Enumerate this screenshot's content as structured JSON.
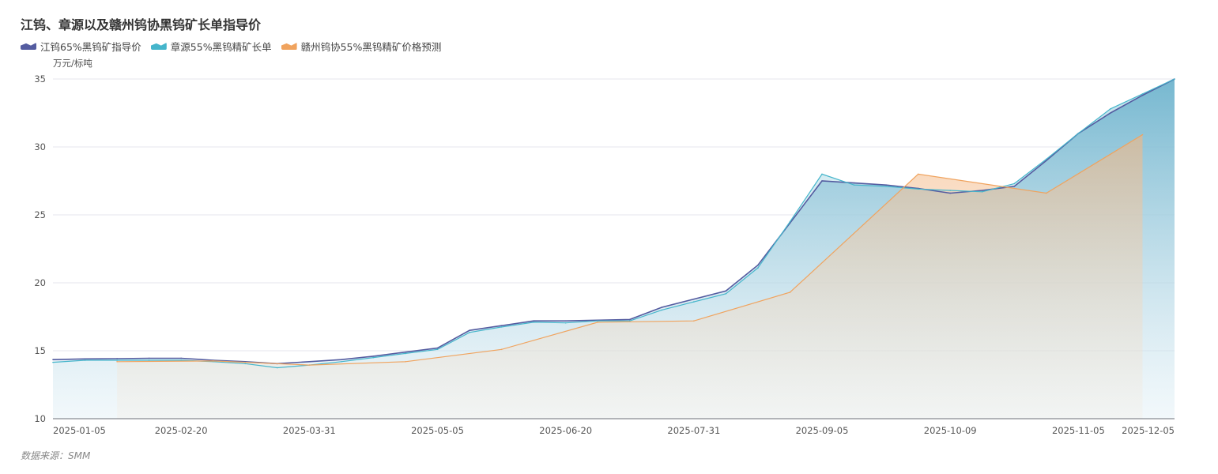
{
  "chart_data": {
    "type": "area",
    "title": "江钨、章源以及赣州钨协黑钨矿长单指导价",
    "ylabel": "万元/标吨",
    "ylim": [
      10,
      35
    ],
    "yticks": [
      10,
      15,
      20,
      25,
      30,
      35
    ],
    "grid": true,
    "legend_position": "top-left",
    "n_points": 36,
    "x_ticks": [
      {
        "i": 0,
        "label": "2025-01-05"
      },
      {
        "i": 4,
        "label": "2025-02-20"
      },
      {
        "i": 8,
        "label": "2025-03-31"
      },
      {
        "i": 12,
        "label": "2025-05-05"
      },
      {
        "i": 16,
        "label": "2025-06-20"
      },
      {
        "i": 20,
        "label": "2025-07-31"
      },
      {
        "i": 24,
        "label": "2025-09-05"
      },
      {
        "i": 28,
        "label": "2025-10-09"
      },
      {
        "i": 32,
        "label": "2025-11-05"
      },
      {
        "i": 35,
        "label": "2025-12-05"
      }
    ],
    "series": [
      {
        "name": "江钨65%黑钨矿指导价",
        "color": "#545ca0",
        "values": [
          14.35,
          14.4,
          14.42,
          14.45,
          14.45,
          14.3,
          14.2,
          14.05,
          14.2,
          14.35,
          14.6,
          14.9,
          15.2,
          16.5,
          16.85,
          17.2,
          17.2,
          17.25,
          17.3,
          18.2,
          18.8,
          19.4,
          21.3,
          24.4,
          27.5,
          27.35,
          27.2,
          26.95,
          26.6,
          26.8,
          27.1,
          29.0,
          31.0,
          32.5,
          33.8,
          35.0
        ]
      },
      {
        "name": "章源55%黑钨精矿长单",
        "color": "#45b5cb",
        "values": [
          14.15,
          14.3,
          14.3,
          14.3,
          14.3,
          14.2,
          14.05,
          13.75,
          13.95,
          14.2,
          14.5,
          14.8,
          15.1,
          16.35,
          16.75,
          17.1,
          17.05,
          17.2,
          17.2,
          18.0,
          18.6,
          19.2,
          21.1,
          24.5,
          28.0,
          27.2,
          27.1,
          26.9,
          26.8,
          26.7,
          27.3,
          29.1,
          31.0,
          32.8,
          33.9,
          35.0
        ]
      },
      {
        "name": "赣州钨协55%黑钨精矿价格预测",
        "color": "#f0a35e",
        "values": [
          null,
          null,
          14.2,
          null,
          null,
          14.25,
          null,
          null,
          13.95,
          null,
          null,
          14.2,
          null,
          null,
          15.1,
          null,
          null,
          17.1,
          null,
          null,
          17.2,
          null,
          null,
          19.3,
          null,
          null,
          null,
          28.0,
          null,
          null,
          null,
          26.6,
          null,
          null,
          30.9,
          null
        ]
      }
    ]
  },
  "footer": {
    "source": "数据来源：SMM"
  }
}
